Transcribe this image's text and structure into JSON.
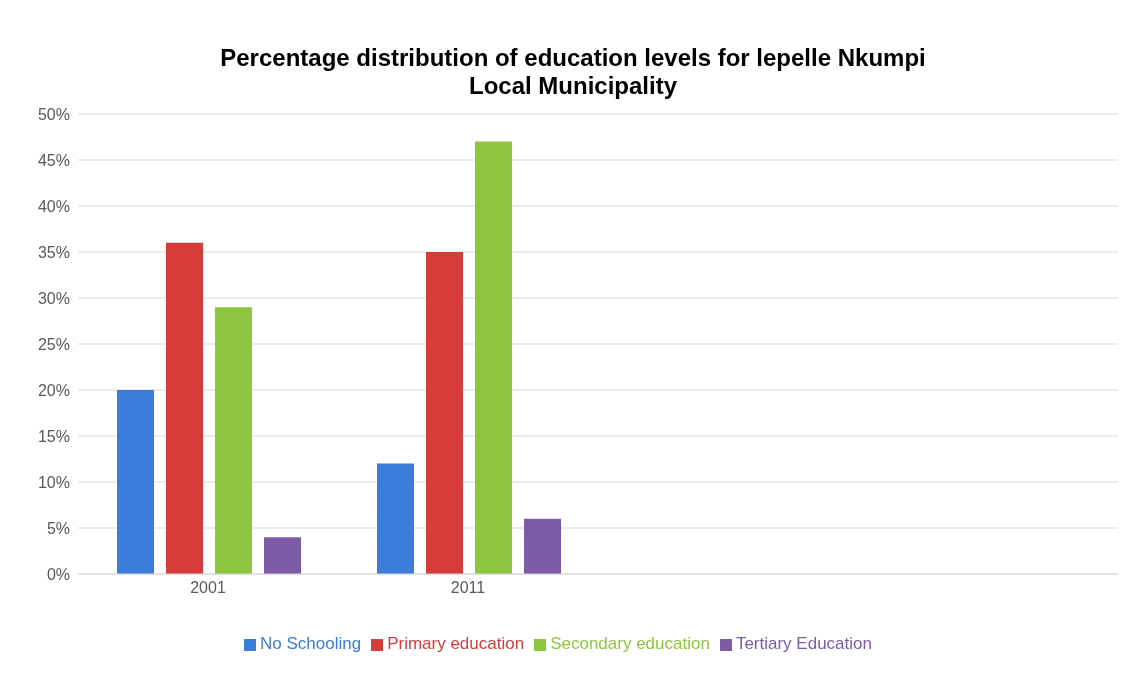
{
  "chart_data": {
    "type": "bar",
    "title": "Percentage distribution of education levels for lepelle Nkumpi Local Municipality",
    "categories": [
      "2001",
      "2011",
      null,
      null
    ],
    "series": [
      {
        "name": "No Schooling",
        "color": "#3b7dd8",
        "values": [
          20,
          12,
          null,
          null
        ]
      },
      {
        "name": "Primary education",
        "color": "#d63c3a",
        "values": [
          36,
          35,
          null,
          null
        ]
      },
      {
        "name": "Secondary education",
        "color": "#8dc63f",
        "values": [
          29,
          47,
          null,
          null
        ]
      },
      {
        "name": "Tertiary Education",
        "color": "#7d5ba6",
        "values": [
          4,
          6,
          null,
          null
        ]
      }
    ],
    "ylim": [
      0,
      50
    ],
    "yticks": [
      {
        "value": 0,
        "label": "0%"
      },
      {
        "value": 5,
        "label": "5%"
      },
      {
        "value": 10,
        "label": "10%"
      },
      {
        "value": 15,
        "label": "15%"
      },
      {
        "value": 20,
        "label": "20%"
      },
      {
        "value": 25,
        "label": "25%"
      },
      {
        "value": 30,
        "label": "30%"
      },
      {
        "value": 35,
        "label": "35%"
      },
      {
        "value": 40,
        "label": "40%"
      },
      {
        "value": 45,
        "label": "45%"
      },
      {
        "value": 50,
        "label": "50%"
      }
    ],
    "grid": "y",
    "legend": "bottom"
  }
}
